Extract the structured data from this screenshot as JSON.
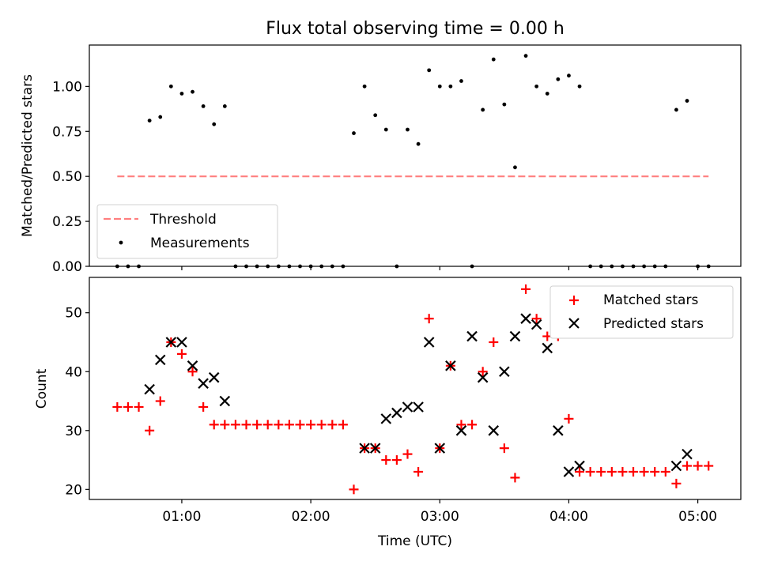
{
  "chart_data": [
    {
      "type": "scatter",
      "title": "Flux total observing time = 0.00 h",
      "xlabel": "",
      "ylabel": "Matched/Predicted stars",
      "ylim": [
        0,
        1.23
      ],
      "yticks": [
        "0.00",
        "0.25",
        "0.50",
        "0.75",
        "1.00"
      ],
      "xlim": [
        "00:17",
        "05:20"
      ],
      "legend_placement": "lower-left",
      "threshold": {
        "name": "Threshold",
        "style": "dashed",
        "color": "#ff7f7f",
        "value": 0.5,
        "x_range": [
          "00:30",
          "05:05"
        ]
      },
      "series": [
        {
          "name": "Measurements",
          "color": "#000000",
          "x": [
            "00:30",
            "00:35",
            "00:40",
            "00:45",
            "00:50",
            "00:55",
            "01:00",
            "01:05",
            "01:10",
            "01:15",
            "01:20",
            "01:25",
            "01:30",
            "01:35",
            "01:40",
            "01:45",
            "01:50",
            "01:55",
            "02:00",
            "02:05",
            "02:10",
            "02:15",
            "02:20",
            "02:25",
            "02:30",
            "02:35",
            "02:40",
            "02:45",
            "02:50",
            "02:55",
            "03:00",
            "03:05",
            "03:10",
            "03:15",
            "03:20",
            "03:25",
            "03:30",
            "03:35",
            "03:40",
            "03:45",
            "03:50",
            "03:55",
            "04:00",
            "04:05",
            "04:10",
            "04:15",
            "04:20",
            "04:25",
            "04:30",
            "04:35",
            "04:40",
            "04:45",
            "04:50",
            "04:55",
            "05:00",
            "05:05"
          ],
          "y": [
            0,
            0,
            0,
            0.81,
            0.83,
            1.0,
            0.96,
            0.97,
            0.89,
            0.79,
            0.89,
            0,
            0,
            0,
            0,
            0,
            0,
            0,
            0,
            0,
            0,
            0,
            0.74,
            1.0,
            0.84,
            0.76,
            0,
            0.76,
            0.68,
            1.09,
            1.0,
            1.0,
            1.03,
            0,
            0.87,
            1.15,
            0.9,
            0.55,
            1.17,
            1.0,
            0.96,
            1.04,
            1.06,
            1.0,
            0,
            0,
            0,
            0,
            0,
            0,
            0,
            0,
            0.87,
            0.92,
            0,
            0
          ]
        }
      ]
    },
    {
      "type": "scatter",
      "title": "",
      "xlabel": "Time (UTC)",
      "ylabel": "Count",
      "ylim": [
        18.3,
        56
      ],
      "yticks": [
        "20",
        "30",
        "40",
        "50"
      ],
      "xticks": [
        "01:00",
        "02:00",
        "03:00",
        "04:00",
        "05:00"
      ],
      "xlim": [
        "00:17",
        "05:20"
      ],
      "legend_placement": "top-right",
      "series": [
        {
          "name": "Matched stars",
          "marker": "plus",
          "color": "#ff0000",
          "x": [
            "00:30",
            "00:35",
            "00:40",
            "00:45",
            "00:50",
            "00:55",
            "01:00",
            "01:05",
            "01:10",
            "01:15",
            "01:20",
            "01:25",
            "01:30",
            "01:35",
            "01:40",
            "01:45",
            "01:50",
            "01:55",
            "02:00",
            "02:05",
            "02:10",
            "02:15",
            "02:20",
            "02:25",
            "02:30",
            "02:35",
            "02:40",
            "02:45",
            "02:50",
            "02:55",
            "03:00",
            "03:05",
            "03:10",
            "03:15",
            "03:20",
            "03:25",
            "03:30",
            "03:35",
            "03:40",
            "03:45",
            "03:50",
            "03:55",
            "04:00",
            "04:05",
            "04:10",
            "04:15",
            "04:20",
            "04:25",
            "04:30",
            "04:35",
            "04:40",
            "04:45",
            "04:50",
            "04:55",
            "05:00",
            "05:05"
          ],
          "y": [
            34,
            34,
            34,
            30,
            35,
            45,
            43,
            40,
            34,
            31,
            31,
            31,
            31,
            31,
            31,
            31,
            31,
            31,
            31,
            31,
            31,
            31,
            20,
            27,
            27,
            25,
            25,
            26,
            23,
            49,
            27,
            41,
            31,
            31,
            40,
            45,
            27,
            22,
            54,
            49,
            46,
            46,
            32,
            23,
            23,
            23,
            23,
            23,
            23,
            23,
            23,
            23,
            21,
            24,
            24,
            24
          ]
        },
        {
          "name": "Predicted stars",
          "marker": "x",
          "color": "#000000",
          "x": [
            "00:45",
            "00:50",
            "00:55",
            "01:00",
            "01:05",
            "01:10",
            "01:15",
            "01:20",
            "02:25",
            "02:30",
            "02:35",
            "02:40",
            "02:45",
            "02:50",
            "02:55",
            "03:00",
            "03:05",
            "03:10",
            "03:15",
            "03:20",
            "03:25",
            "03:30",
            "03:35",
            "03:40",
            "03:45",
            "03:50",
            "03:55",
            "04:00",
            "04:05",
            "04:50",
            "04:55"
          ],
          "y": [
            37,
            42,
            45,
            45,
            41,
            38,
            39,
            35,
            27,
            27,
            32,
            33,
            34,
            34,
            45,
            27,
            41,
            30,
            46,
            39,
            30,
            40,
            46,
            49,
            48,
            44,
            30,
            23,
            24,
            24,
            26
          ]
        }
      ]
    }
  ]
}
